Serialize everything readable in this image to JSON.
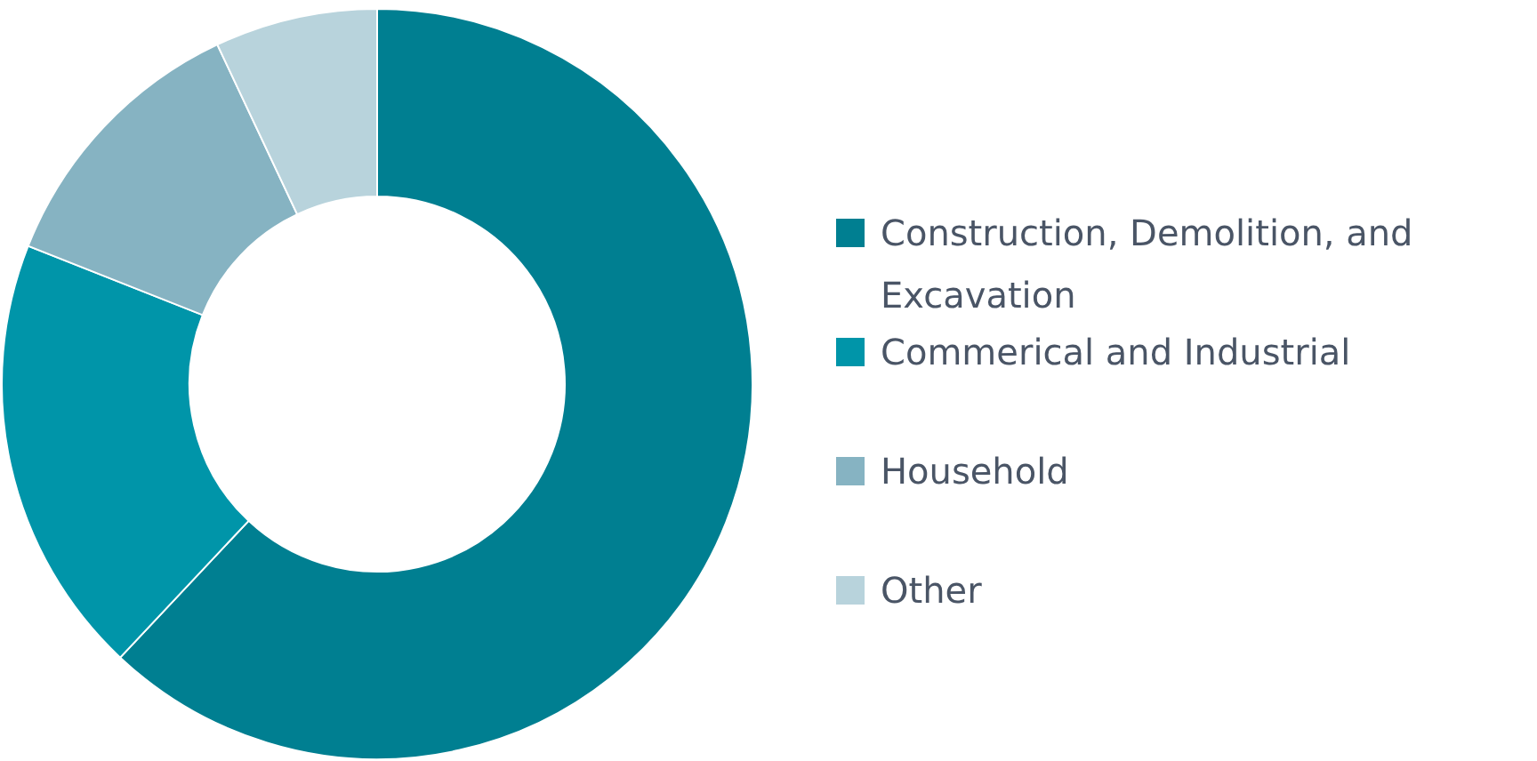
{
  "chart_data": {
    "type": "donut",
    "categories": [
      "Construction, Demolition, and Excavation",
      "Commerical and Industrial",
      "Household",
      "Other"
    ],
    "values": [
      62,
      19,
      12,
      7
    ],
    "colors": [
      "#007f91",
      "#0095a9",
      "#86b3c2",
      "#b8d3dc"
    ],
    "legend": "right"
  }
}
